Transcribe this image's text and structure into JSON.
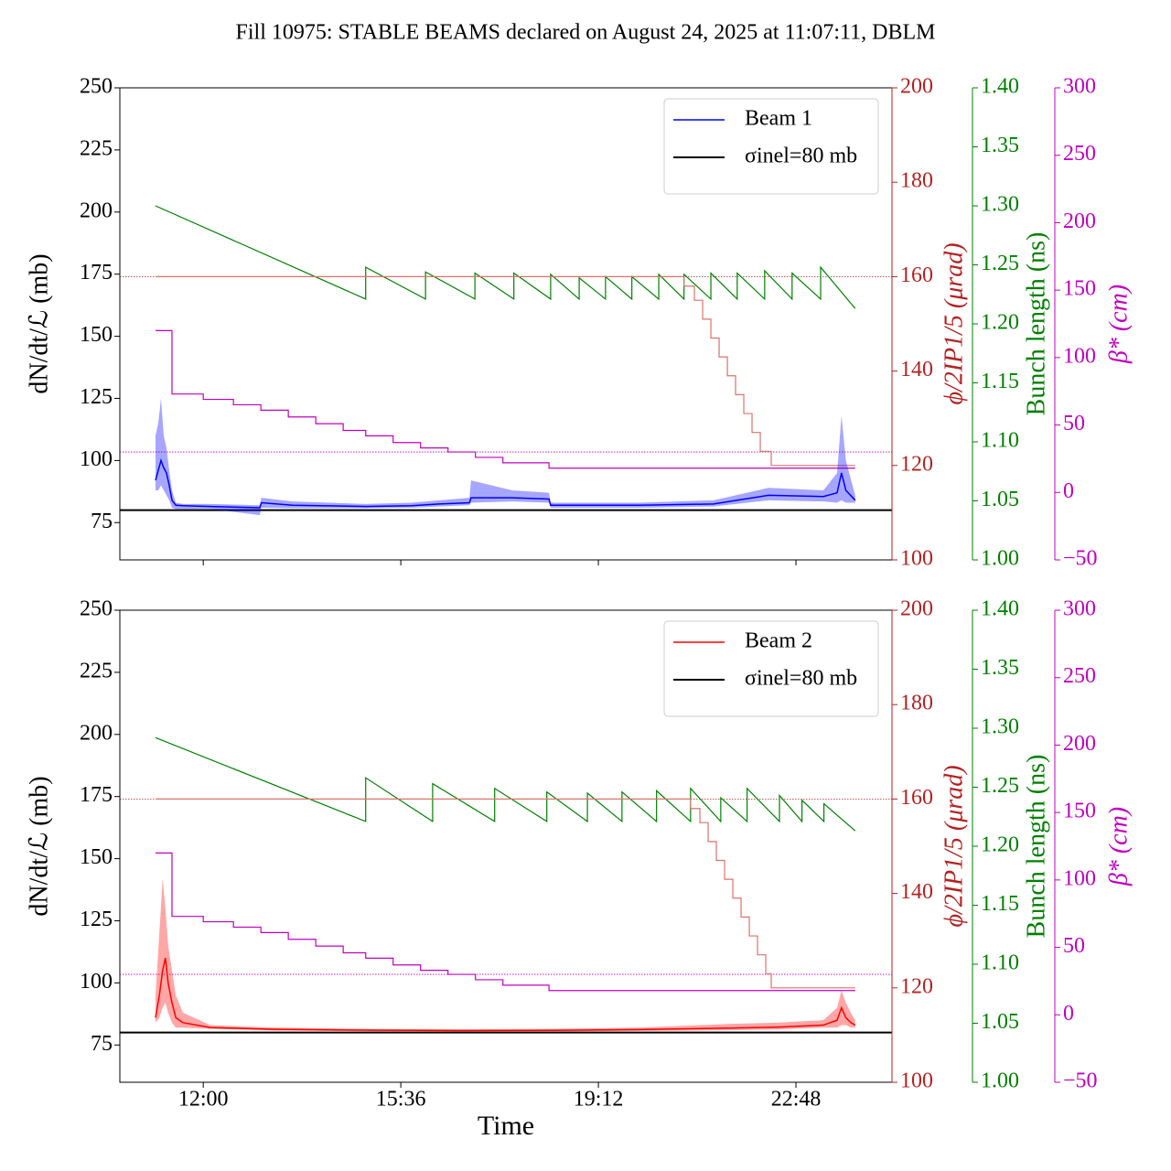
{
  "title": "Fill 10975: STABLE BEAMS declared on August 24, 2025 at 11:07:11, DBLM",
  "chart_data": [
    {
      "type": "line",
      "xlim": [
        10.48,
        24.55
      ],
      "xticks": [
        12,
        15.6,
        19.2,
        22.8
      ],
      "ylabel": "dN/dt/ℒ (mb)",
      "ylim": [
        60,
        250
      ],
      "yticks": [
        75,
        100,
        125,
        150,
        175,
        200,
        225,
        250
      ],
      "y2label": "ϕ/2IP1/5 (μrad)",
      "y2lim": [
        100,
        200
      ],
      "y2ticks": [
        100,
        120,
        140,
        160,
        180,
        200
      ],
      "y2color": "#b22222",
      "y3label": "Bunch length (ns)",
      "y3lim": [
        1.0,
        1.4
      ],
      "y3ticks": [
        {
          "value": 1.0,
          "label": "1.00"
        },
        {
          "value": 1.05,
          "label": "1.05"
        },
        {
          "value": 1.1,
          "label": "1.10"
        },
        {
          "value": 1.15,
          "label": "1.15"
        },
        {
          "value": 1.2,
          "label": "1.20"
        },
        {
          "value": 1.25,
          "label": "1.25"
        },
        {
          "value": 1.3,
          "label": "1.30"
        },
        {
          "value": 1.35,
          "label": "1.35"
        },
        {
          "value": 1.4,
          "label": "1.40"
        }
      ],
      "y3color": "#008000",
      "y4label": "β* (cm)",
      "y4lim": [
        -50,
        300
      ],
      "y4ticks": [
        {
          "value": -50,
          "label": "−50"
        },
        0,
        50,
        100,
        150,
        200,
        250,
        300
      ],
      "y4color": "#c000c0",
      "legend": "upper right",
      "hlines": [
        {
          "value": 160,
          "axis": "y2",
          "color": "#b22222",
          "style": "dotted"
        },
        {
          "value": 30,
          "axis": "y4",
          "color": "#c000c0",
          "style": "dotted"
        },
        {
          "name": "σinel=80 mb",
          "value": 80,
          "axis": "y",
          "color": "#000000",
          "style": "solid"
        }
      ],
      "series": [
        {
          "axis": "y3",
          "color": "#008000",
          "x": [
            11.13,
            14.96,
            14.96,
            16.05,
            16.05,
            16.95,
            16.95,
            17.66,
            17.66,
            18.33,
            18.33,
            18.85,
            18.85,
            19.33,
            19.33,
            19.81,
            19.81,
            20.3,
            20.3,
            20.76,
            20.76,
            21.25,
            21.25,
            21.73,
            21.73,
            22.23,
            22.23,
            22.73,
            22.73,
            23.25,
            23.25,
            23.88
          ],
          "values": [
            1.3,
            1.221,
            1.248,
            1.221,
            1.244,
            1.221,
            1.243,
            1.221,
            1.243,
            1.221,
            1.242,
            1.221,
            1.239,
            1.221,
            1.24,
            1.221,
            1.24,
            1.221,
            1.242,
            1.221,
            1.242,
            1.221,
            1.243,
            1.221,
            1.243,
            1.221,
            1.245,
            1.221,
            1.243,
            1.221,
            1.248,
            1.213
          ]
        },
        {
          "axis": "y2",
          "color": "#d9736b",
          "step": true,
          "x": [
            11.13,
            20.76,
            20.95,
            21.1,
            21.25,
            21.4,
            21.55,
            21.7,
            21.85,
            22.0,
            22.15,
            22.35,
            23.88
          ],
          "values": [
            160,
            158,
            155,
            151,
            147,
            143,
            139,
            135,
            131,
            127,
            123,
            120,
            120
          ]
        },
        {
          "axis": "y4",
          "color": "#c000c0",
          "step": true,
          "x": [
            11.13,
            11.43,
            12.0,
            12.55,
            13.05,
            13.55,
            14.05,
            14.55,
            14.96,
            15.46,
            15.96,
            16.46,
            16.96,
            17.46,
            18.3,
            23.88
          ],
          "values": [
            120,
            73,
            69,
            65,
            61,
            56,
            51,
            46,
            42,
            37,
            33,
            30,
            26,
            22,
            18,
            18
          ]
        },
        {
          "name": "Beam 1",
          "axis": "y",
          "color": "#0000ff",
          "x": [
            11.13,
            11.18,
            11.23,
            11.28,
            11.33,
            11.38,
            11.43,
            11.5,
            11.63,
            12.13,
            13.03,
            13.06,
            13.63,
            14.96,
            15.8,
            16.3,
            16.85,
            16.88,
            17.63,
            18.3,
            18.33,
            19.96,
            21.3,
            22.3,
            23.3,
            23.55,
            23.63,
            23.71,
            23.88
          ],
          "values": [
            92,
            96,
            100,
            97,
            95,
            90,
            84,
            82,
            81.8,
            81.5,
            81,
            83,
            82,
            81.5,
            81.8,
            82.5,
            83,
            85,
            85,
            84.5,
            82,
            82,
            82.5,
            86,
            85.5,
            87,
            95,
            88,
            84
          ],
          "lower": [
            88,
            88,
            90,
            88,
            86,
            84,
            81,
            80.5,
            80.5,
            80.5,
            78,
            81,
            80.8,
            80.8,
            81,
            81.5,
            82,
            83,
            83.5,
            83,
            81,
            81,
            81.5,
            84,
            83.5,
            83,
            84,
            83,
            83
          ],
          "upper": [
            110,
            115,
            125,
            110,
            105,
            96,
            88,
            83,
            82.5,
            82.5,
            82,
            85,
            83.5,
            82.5,
            83,
            84,
            85,
            92,
            88,
            87,
            83,
            83,
            84,
            89,
            88,
            95,
            118,
            100,
            86
          ]
        }
      ]
    },
    {
      "type": "line",
      "xlabel": "Time",
      "xlim": [
        10.48,
        24.55
      ],
      "xticks": [
        {
          "value": 12,
          "label": "12:00"
        },
        {
          "value": 15.6,
          "label": "15:36"
        },
        {
          "value": 19.2,
          "label": "19:12"
        },
        {
          "value": 22.8,
          "label": "22:48"
        }
      ],
      "ylabel": "dN/dt/ℒ (mb)",
      "ylim": [
        60,
        250
      ],
      "yticks": [
        75,
        100,
        125,
        150,
        175,
        200,
        225,
        250
      ],
      "y2label": "ϕ/2IP1/5 (μrad)",
      "y2lim": [
        100,
        200
      ],
      "y2ticks": [
        100,
        120,
        140,
        160,
        180,
        200
      ],
      "y2color": "#b22222",
      "y3label": "Bunch length (ns)",
      "y3lim": [
        1.0,
        1.4
      ],
      "y3ticks": [
        {
          "value": 1.0,
          "label": "1.00"
        },
        {
          "value": 1.05,
          "label": "1.05"
        },
        {
          "value": 1.1,
          "label": "1.10"
        },
        {
          "value": 1.15,
          "label": "1.15"
        },
        {
          "value": 1.2,
          "label": "1.20"
        },
        {
          "value": 1.25,
          "label": "1.25"
        },
        {
          "value": 1.3,
          "label": "1.30"
        },
        {
          "value": 1.35,
          "label": "1.35"
        },
        {
          "value": 1.4,
          "label": "1.40"
        }
      ],
      "y3color": "#008000",
      "y4label": "β* (cm)",
      "y4lim": [
        -50,
        300
      ],
      "y4ticks": [
        {
          "value": -50,
          "label": "−50"
        },
        0,
        50,
        100,
        150,
        200,
        250,
        300
      ],
      "y4color": "#c000c0",
      "legend": "upper right",
      "hlines": [
        {
          "value": 160,
          "axis": "y2",
          "color": "#b22222",
          "style": "dotted"
        },
        {
          "value": 30,
          "axis": "y4",
          "color": "#c000c0",
          "style": "dotted"
        },
        {
          "name": "σinel=80 mb",
          "value": 80,
          "axis": "y",
          "color": "#000000",
          "style": "solid"
        }
      ],
      "series": [
        {
          "axis": "y3",
          "color": "#008000",
          "x": [
            11.13,
            14.96,
            14.96,
            16.18,
            16.18,
            17.31,
            17.31,
            18.26,
            18.26,
            19.0,
            19.0,
            19.63,
            19.63,
            20.26,
            20.26,
            20.88,
            20.88,
            21.43,
            21.43,
            21.91,
            21.91,
            22.5,
            22.5,
            22.91,
            22.91,
            23.31,
            23.31,
            23.88
          ],
          "values": [
            1.292,
            1.221,
            1.258,
            1.221,
            1.253,
            1.221,
            1.249,
            1.221,
            1.246,
            1.221,
            1.245,
            1.221,
            1.246,
            1.221,
            1.247,
            1.221,
            1.249,
            1.221,
            1.241,
            1.221,
            1.249,
            1.221,
            1.243,
            1.221,
            1.239,
            1.221,
            1.236,
            1.213
          ]
        },
        {
          "axis": "y2",
          "color": "#d9736b",
          "step": true,
          "x": [
            11.13,
            20.88,
            21.05,
            21.2,
            21.35,
            21.5,
            21.65,
            21.8,
            21.95,
            22.1,
            22.25,
            22.35,
            23.88
          ],
          "values": [
            160,
            158,
            155,
            151,
            147,
            143,
            139,
            135,
            131,
            127,
            123,
            120,
            120
          ]
        },
        {
          "axis": "y4",
          "color": "#c000c0",
          "step": true,
          "x": [
            11.13,
            11.43,
            12.0,
            12.55,
            13.05,
            13.55,
            14.05,
            14.55,
            14.96,
            15.46,
            15.96,
            16.46,
            16.96,
            17.46,
            18.3,
            23.88
          ],
          "values": [
            120,
            73,
            69,
            65,
            61,
            56,
            51,
            46,
            42,
            37,
            33,
            30,
            26,
            22,
            18,
            18
          ]
        },
        {
          "name": "Beam 2",
          "axis": "y",
          "color": "#ff0000",
          "x": [
            11.13,
            11.2,
            11.26,
            11.31,
            11.36,
            11.43,
            11.5,
            11.63,
            12.13,
            13.3,
            14.96,
            16.63,
            18.3,
            19.96,
            21.63,
            22.46,
            23.3,
            23.55,
            23.63,
            23.71,
            23.8,
            23.88
          ],
          "values": [
            86,
            95,
            105,
            110,
            100,
            92,
            86,
            84,
            82,
            81.3,
            81,
            80.8,
            80.9,
            81.2,
            81.8,
            82.2,
            83,
            85,
            90,
            86,
            84,
            83
          ],
          "lower": [
            84,
            86,
            90,
            92,
            88,
            84,
            82,
            82,
            81.5,
            80.8,
            80.5,
            80.3,
            80.4,
            80.6,
            81,
            81.2,
            82,
            82,
            83,
            83,
            82,
            82
          ],
          "upper": [
            95,
            120,
            142,
            130,
            115,
            105,
            95,
            88,
            83,
            82,
            81.5,
            81.3,
            81.5,
            82,
            83.5,
            84,
            85,
            90,
            97,
            92,
            88,
            85
          ]
        }
      ]
    }
  ]
}
